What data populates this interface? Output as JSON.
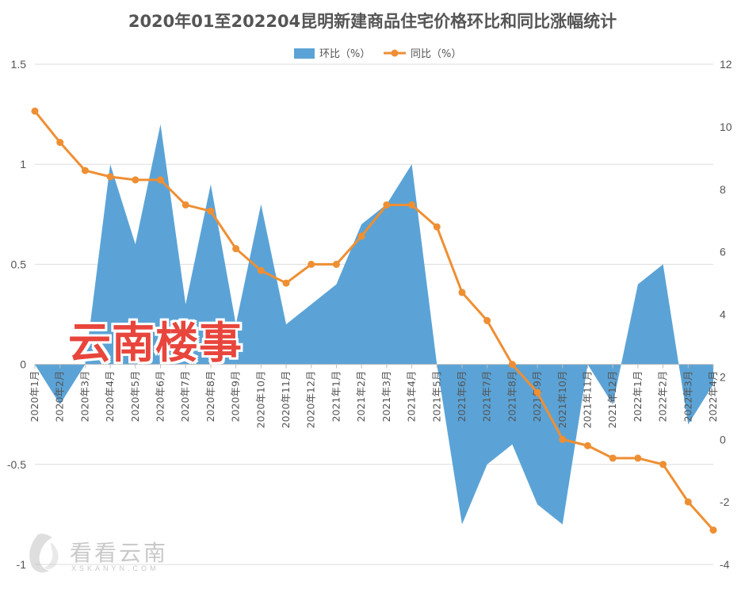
{
  "chart_data": {
    "type": "area+line",
    "title": "2020年01至202204昆明新建商品住宅价格环比和同比涨幅统计",
    "categories": [
      "2020年1月",
      "2020年2月",
      "2020年3月",
      "2020年4月",
      "2020年5月",
      "2020年6月",
      "2020年7月",
      "2020年8月",
      "2020年9月",
      "2020年10月",
      "2020年11月",
      "2020年12月",
      "2021年1月",
      "2021年2月",
      "2021年3月",
      "2021年4月",
      "2021年5月",
      "2021年6月",
      "2021年7月",
      "2021年8月",
      "2021年9月",
      "2021年10月",
      "2021年11月",
      "2021年12月",
      "2022年1月",
      "2022年2月",
      "2022年3月",
      "2022年4月"
    ],
    "series": [
      {
        "name": "环比（%）",
        "type": "area",
        "axis": "left",
        "color": "#5ba3d6",
        "values": [
          0,
          -0.2,
          0,
          1.0,
          0.6,
          1.2,
          0.3,
          0.9,
          0.2,
          0.8,
          0.2,
          0.3,
          0.4,
          0.7,
          0.8,
          1.0,
          0.0,
          -0.8,
          -0.5,
          -0.4,
          -0.7,
          -0.8,
          0.0,
          -0.2,
          0.4,
          0.5,
          -0.3,
          -0.1
        ]
      },
      {
        "name": "同比（%）",
        "type": "line",
        "axis": "right",
        "color": "#ee8f33",
        "values": [
          10.5,
          9.5,
          8.6,
          8.4,
          8.3,
          8.3,
          7.5,
          7.3,
          6.1,
          5.4,
          5.0,
          5.6,
          5.6,
          6.5,
          7.5,
          7.5,
          6.8,
          4.7,
          3.8,
          2.4,
          1.5,
          0.0,
          -0.2,
          -0.6,
          -0.6,
          -0.8,
          -2.0,
          -2.9
        ]
      }
    ],
    "left_axis": {
      "min": -1,
      "max": 1.5,
      "ticks": [
        -1,
        -0.5,
        0,
        0.5,
        1,
        1.5
      ],
      "labels": [
        "-1",
        "-0.5",
        "0",
        "0.5",
        "1",
        "1.5"
      ]
    },
    "right_axis": {
      "min": -4,
      "max": 12,
      "ticks": [
        -4,
        -2,
        0,
        2,
        4,
        6,
        8,
        10,
        12
      ],
      "labels": [
        "-4",
        "-2",
        "0",
        "2",
        "4",
        "6",
        "8",
        "10",
        "12"
      ]
    },
    "legend_position": "top-center",
    "grid": true
  },
  "watermark": {
    "text": "云南楼事"
  },
  "logo": {
    "cn": "看看云南",
    "en": "XSKANYN.COM"
  }
}
